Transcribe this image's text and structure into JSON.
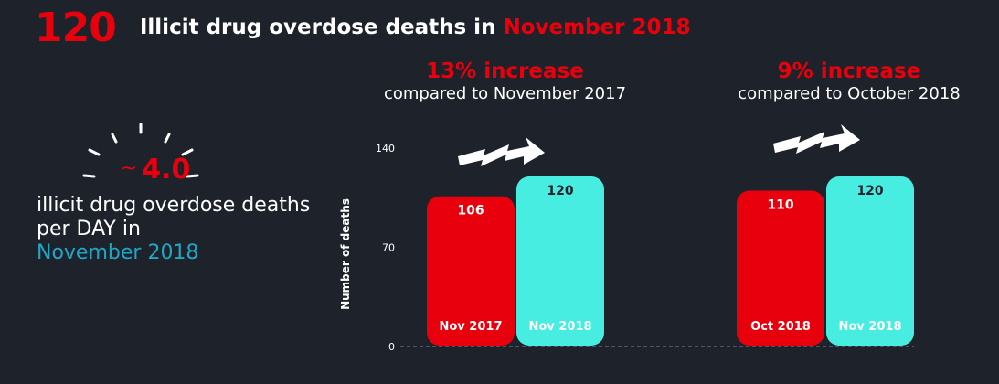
{
  "headline": {
    "number": "120",
    "text": "Illicit drug overdose deaths in",
    "accent": "November 2018"
  },
  "daily": {
    "tilde": "~",
    "rate": "4.0",
    "caption": "illicit drug overdose deaths per DAY in",
    "accent": "November 2018"
  },
  "comparisons": [
    {
      "percent": "13% increase",
      "text": "compared to November 2017",
      "icon": "zigzag-arrow-icon"
    },
    {
      "percent": "9% increase",
      "text": "compared to October 2018",
      "icon": "zigzag-arrow-icon"
    }
  ],
  "colors": {
    "background": "#1e232b",
    "accent_red": "#e8000c",
    "accent_teal": "#46ede0",
    "accent_blue": "#22a6c6"
  },
  "chart_data": {
    "type": "bar",
    "ylabel": "Number of deaths",
    "ylim": [
      0,
      140
    ],
    "yticks": [
      "0",
      "70",
      "140"
    ],
    "grid": false,
    "groups": [
      {
        "bars": [
          {
            "category": "Nov 2017",
            "value": 106,
            "color": "#e8000c"
          },
          {
            "category": "Nov 2018",
            "value": 120,
            "color": "#46ede0"
          }
        ]
      },
      {
        "bars": [
          {
            "category": "Oct 2018",
            "value": 110,
            "color": "#e8000c"
          },
          {
            "category": "Nov 2018",
            "value": 120,
            "color": "#46ede0"
          }
        ]
      }
    ]
  }
}
